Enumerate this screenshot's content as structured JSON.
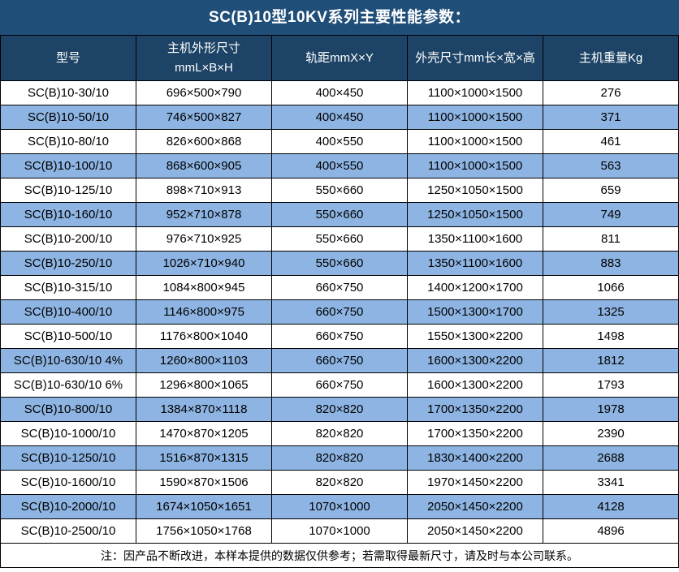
{
  "title": "SC(B)10型10KV系列主要性能参数：",
  "note": "注：因产品不断改进，本样本提供的数据仅供参考；若需取得最新尺寸，请及时与本公司联系。",
  "colors": {
    "title_bg": "#1F4E79",
    "header_bg": "#1D4466",
    "stripe": "#8DB4E2",
    "border": "#000000",
    "header_text": "#FFFFFF",
    "body_text": "#000000"
  },
  "table": {
    "columns": [
      "型号",
      "主机外形尺寸\nmmL×B×H",
      "轨距mmX×Y",
      "外壳尺寸mm长×宽×高",
      "主机重量Kg"
    ],
    "rows": [
      [
        "SC(B)10-30/10",
        "696×500×790",
        "400×450",
        "1100×1000×1500",
        "276"
      ],
      [
        "SC(B)10-50/10",
        "746×500×827",
        "400×450",
        "1100×1000×1500",
        "371"
      ],
      [
        "SC(B)10-80/10",
        "826×600×868",
        "400×550",
        "1100×1000×1500",
        "461"
      ],
      [
        "SC(B)10-100/10",
        "868×600×905",
        "400×550",
        "1100×1000×1500",
        "563"
      ],
      [
        "SC(B)10-125/10",
        "898×710×913",
        "550×660",
        "1250×1050×1500",
        "659"
      ],
      [
        "SC(B)10-160/10",
        "952×710×878",
        "550×660",
        "1250×1050×1500",
        "749"
      ],
      [
        "SC(B)10-200/10",
        "976×710×925",
        "550×660",
        "1350×1100×1600",
        "811"
      ],
      [
        "SC(B)10-250/10",
        "1026×710×940",
        "550×660",
        "1350×1100×1600",
        "883"
      ],
      [
        "SC(B)10-315/10",
        "1084×800×945",
        "660×750",
        "1400×1200×1700",
        "1066"
      ],
      [
        "SC(B)10-400/10",
        "1146×800×975",
        "660×750",
        "1500×1300×1700",
        "1325"
      ],
      [
        "SC(B)10-500/10",
        "1176×800×1040",
        "660×750",
        "1550×1300×2200",
        "1498"
      ],
      [
        "SC(B)10-630/10 4%",
        "1260×800×1103",
        "660×750",
        "1600×1300×2200",
        "1812"
      ],
      [
        "SC(B)10-630/10 6%",
        "1296×800×1065",
        "660×750",
        "1600×1300×2200",
        "1793"
      ],
      [
        "SC(B)10-800/10",
        "1384×870×1118",
        "820×820",
        "1700×1350×2200",
        "1978"
      ],
      [
        "SC(B)10-1000/10",
        "1470×870×1205",
        "820×820",
        "1700×1350×2200",
        "2390"
      ],
      [
        "SC(B)10-1250/10",
        "1516×870×1315",
        "820×820",
        "1830×1400×2200",
        "2688"
      ],
      [
        "SC(B)10-1600/10",
        "1590×870×1506",
        "820×820",
        "1970×1450×2200",
        "3341"
      ],
      [
        "SC(B)10-2000/10",
        "1674×1050×1651",
        "1070×1000",
        "2050×1450×2200",
        "4128"
      ],
      [
        "SC(B)10-2500/10",
        "1756×1050×1768",
        "1070×1000",
        "2050×1450×2200",
        "4896"
      ]
    ]
  }
}
